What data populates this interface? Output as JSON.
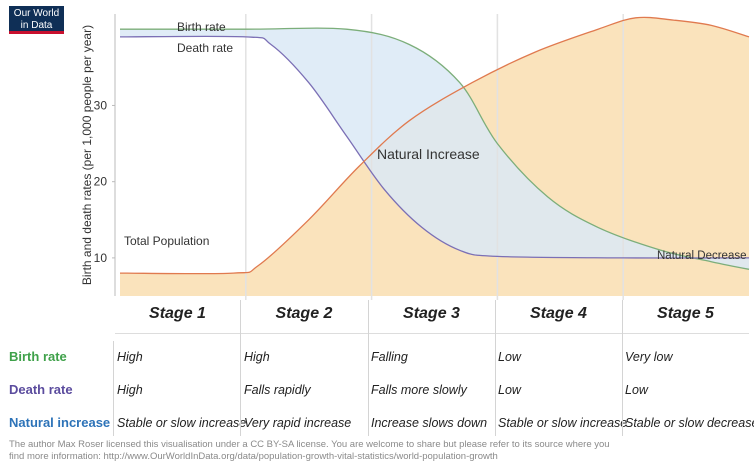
{
  "logo": {
    "line1": "Our World",
    "line2": "in Data"
  },
  "chart_data": {
    "type": "area",
    "ylabel": "Birth and death rates (per 1,000 people per year)",
    "ylim": [
      5,
      42
    ],
    "yticks": [
      10,
      20,
      30
    ],
    "stages": [
      "Stage 1",
      "Stage 2",
      "Stage 3",
      "Stage 4",
      "Stage 5"
    ],
    "series": [
      {
        "name": "Birth rate",
        "color": "#7cae7a",
        "points": [
          [
            0,
            40
          ],
          [
            1.0,
            40
          ],
          [
            1.8,
            40
          ],
          [
            2.3,
            38
          ],
          [
            2.7,
            33
          ],
          [
            3.0,
            25
          ],
          [
            3.4,
            18
          ],
          [
            3.8,
            14
          ],
          [
            4.3,
            11
          ],
          [
            4.7,
            9.5
          ],
          [
            5,
            8.5
          ]
        ]
      },
      {
        "name": "Death rate",
        "color": "#7b6fb5",
        "points": [
          [
            0,
            39
          ],
          [
            1.0,
            39
          ],
          [
            1.2,
            38
          ],
          [
            1.5,
            33
          ],
          [
            1.8,
            26
          ],
          [
            2.1,
            19
          ],
          [
            2.4,
            14
          ],
          [
            2.7,
            11
          ],
          [
            3.0,
            10.2
          ],
          [
            4,
            10
          ],
          [
            5,
            10
          ]
        ]
      },
      {
        "name": "Total Population",
        "color": "#e07a4f",
        "points": [
          [
            0,
            8
          ],
          [
            0.9,
            8
          ],
          [
            1.1,
            9
          ],
          [
            1.5,
            15
          ],
          [
            1.9,
            22
          ],
          [
            2.3,
            28
          ],
          [
            2.8,
            33
          ],
          [
            3.3,
            37
          ],
          [
            3.8,
            40
          ],
          [
            4.1,
            41.5
          ],
          [
            4.4,
            41.2
          ],
          [
            4.7,
            40.5
          ],
          [
            5,
            39
          ]
        ]
      }
    ],
    "annotations": [
      "Natural Increase",
      "Natural Decrease"
    ],
    "grid": false
  },
  "table": {
    "rows": [
      {
        "label": "Birth rate",
        "color": "#3fa14a",
        "cells": [
          "High",
          "High",
          "Falling",
          "Low",
          "Very low"
        ]
      },
      {
        "label": "Death rate",
        "color": "#5b4c9e",
        "cells": [
          "High",
          "Falls rapidly",
          "Falls more slowly",
          "Low",
          "Low"
        ]
      },
      {
        "label": "Natural increase",
        "color": "#2d73b8",
        "cells": [
          "Stable or slow increase",
          "Very rapid increase",
          "Increase slows down",
          "Stable or slow increase",
          "Stable or slow decrease"
        ]
      }
    ]
  },
  "footer": {
    "line1": "The author Max Roser licensed this visualisation under a CC BY-SA license. You are welcome to share but please refer to its source where you",
    "line2": "find more information: http://www.OurWorldInData.org/data/population-growth-vital-statistics/world-population-growth"
  }
}
